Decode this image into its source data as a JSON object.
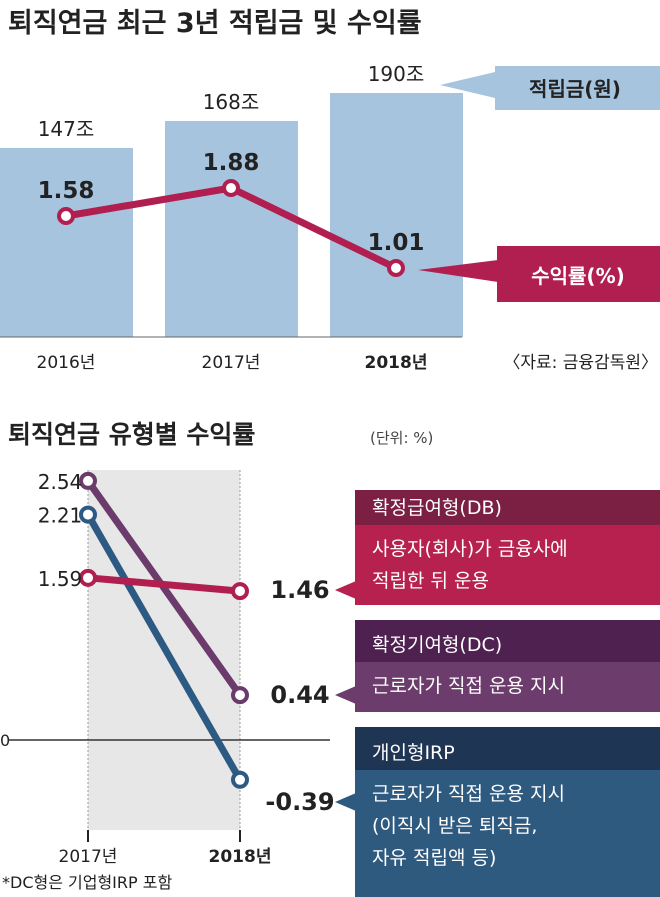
{
  "chart_data": [
    {
      "type": "bar+line",
      "title": "퇴직연금 최근 3년 적립금 및 수익률",
      "categories": [
        "2016년",
        "2017년",
        "2018년"
      ],
      "series": [
        {
          "name": "적립금(원)",
          "type": "bar",
          "values": [
            147,
            168,
            190
          ],
          "labels": [
            "147조",
            "168조",
            "190조"
          ],
          "color": "#a7c4df"
        },
        {
          "name": "수익률(%)",
          "type": "line",
          "values": [
            1.58,
            1.88,
            1.01
          ],
          "labels": [
            "1.58",
            "1.88",
            "1.01"
          ],
          "color": "#b01f50"
        }
      ],
      "source": "〈자료: 금융감독원〉"
    },
    {
      "type": "line",
      "title": "퇴직연금 유형별 수익률",
      "unit": "(단위: %)",
      "categories": [
        "2017년",
        "2018년"
      ],
      "zero_label": "0",
      "series": [
        {
          "name": "확정급여형(DB)",
          "desc": [
            "사용자(회사)가 금융사에",
            "적립한 뒤 운용"
          ],
          "values": [
            1.59,
            1.46
          ],
          "labels": [
            "1.59",
            "1.46"
          ],
          "color": "#b01f50",
          "header_color": "#7b2042",
          "desc_color": "#b6214f"
        },
        {
          "name": "확정기여형(DC)",
          "desc": [
            "근로자가 직접 운용 지시"
          ],
          "values": [
            2.54,
            0.44
          ],
          "labels": [
            "2.54",
            "0.44"
          ],
          "color": "#6b3b6b",
          "header_color": "#4f2150",
          "desc_color": "#6c3d6c"
        },
        {
          "name": "개인형IRP",
          "desc": [
            "근로자가 직접 운용 지시",
            "(이직시 받은 퇴직금,",
            "자유 적립액 등)"
          ],
          "values": [
            2.21,
            -0.39
          ],
          "labels": [
            "2.21",
            "-0.39"
          ],
          "color": "#2d5a82",
          "header_color": "#1f3554",
          "desc_color": "#2f5a80"
        }
      ],
      "footnote": "*DC형은 기업형IRP 포함"
    }
  ]
}
